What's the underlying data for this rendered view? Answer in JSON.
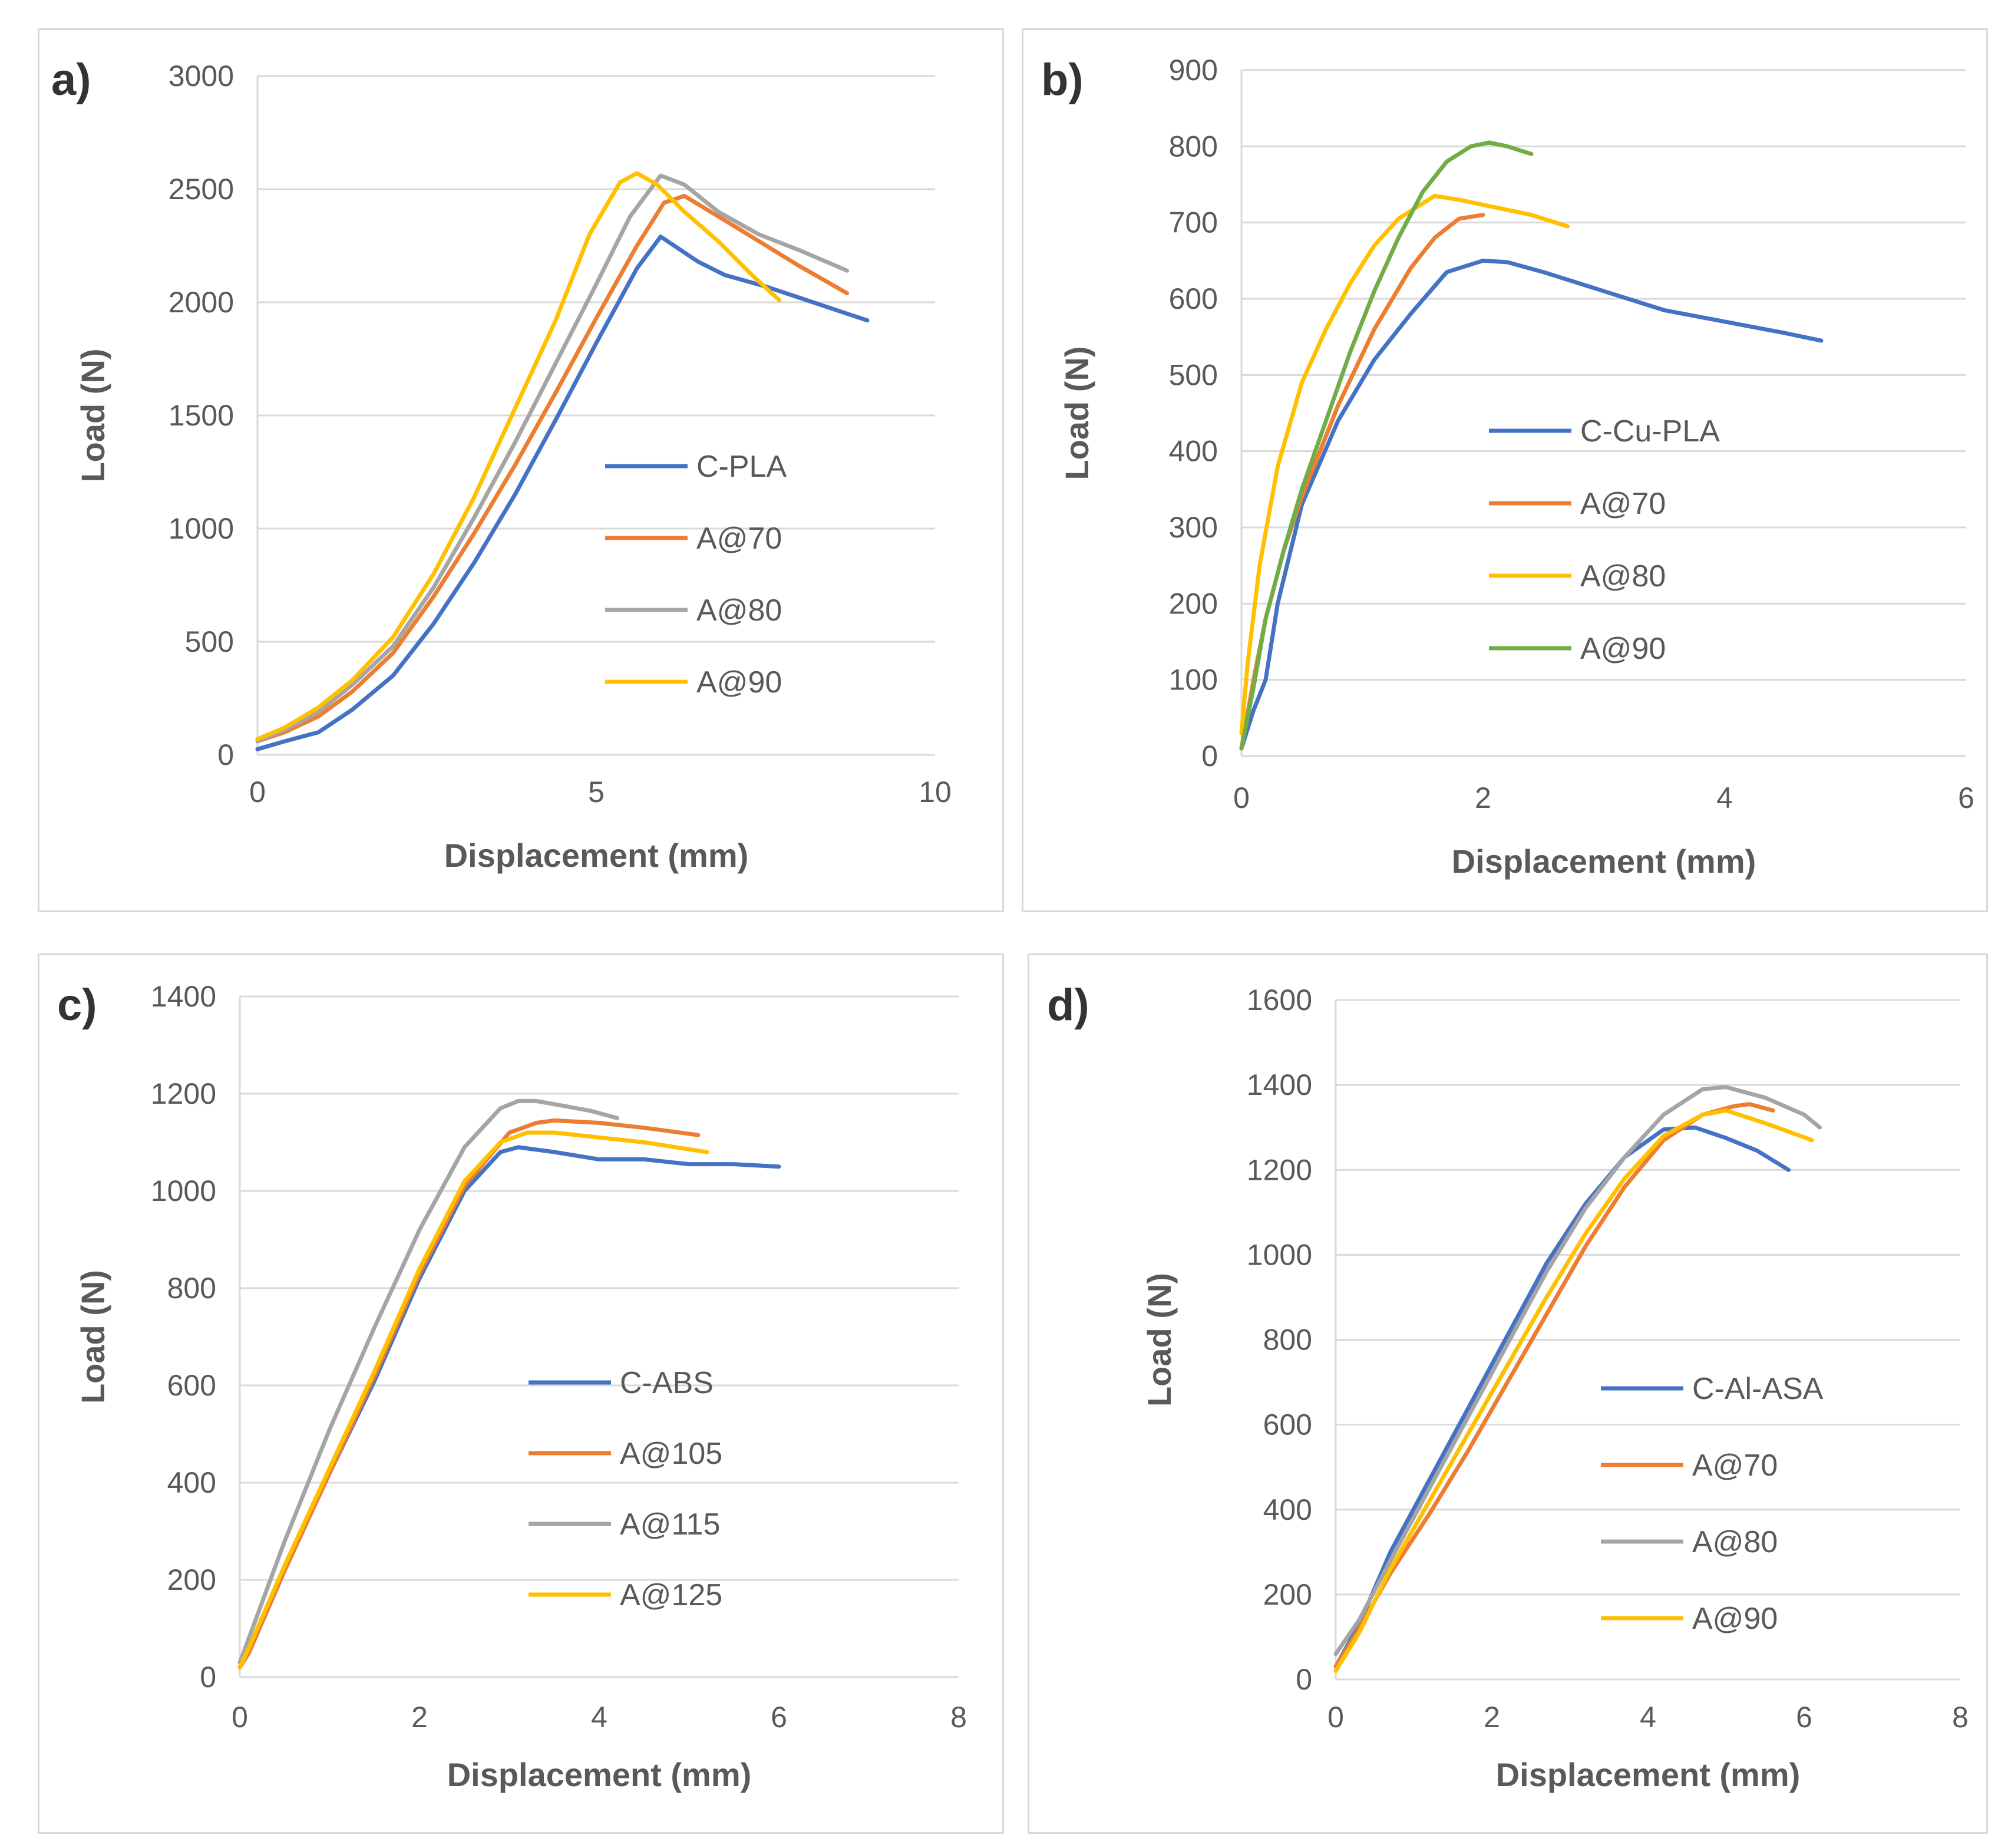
{
  "chart_data": [
    {
      "id": "a",
      "type": "line",
      "panel_label": "a)",
      "xlabel": "Displacement (mm)",
      "ylabel": "Load (N)",
      "xlim": [
        0,
        10
      ],
      "ylim": [
        0,
        3000
      ],
      "xticks": [
        0,
        5,
        10
      ],
      "yticks": [
        0,
        500,
        1000,
        1500,
        2000,
        2500,
        3000
      ],
      "legend_position": "center-right",
      "series": [
        {
          "name": "C-PLA",
          "color": "#4472C4",
          "x": [
            0,
            0.4,
            0.9,
            1.4,
            2.0,
            2.6,
            3.2,
            3.8,
            4.4,
            5.0,
            5.6,
            5.95,
            6.2,
            6.5,
            6.9,
            7.5,
            8.2,
            8.6,
            9.0
          ],
          "y": [
            25,
            60,
            100,
            200,
            350,
            580,
            850,
            1150,
            1480,
            1820,
            2150,
            2290,
            2240,
            2180,
            2120,
            2070,
            2000,
            1960,
            1920
          ]
        },
        {
          "name": "A@70",
          "color": "#ED7D31",
          "x": [
            0,
            0.4,
            0.9,
            1.4,
            2.0,
            2.6,
            3.2,
            3.8,
            4.4,
            5.0,
            5.6,
            6.0,
            6.3,
            6.8,
            7.4,
            8.0,
            8.7
          ],
          "y": [
            60,
            100,
            170,
            280,
            450,
            700,
            980,
            1280,
            1600,
            1930,
            2250,
            2440,
            2470,
            2380,
            2270,
            2160,
            2040
          ]
        },
        {
          "name": "A@80",
          "color": "#A5A5A5",
          "x": [
            0,
            0.4,
            0.9,
            1.4,
            2.0,
            2.6,
            3.2,
            3.8,
            4.4,
            5.0,
            5.5,
            5.95,
            6.3,
            6.8,
            7.4,
            8.0,
            8.7
          ],
          "y": [
            60,
            110,
            190,
            310,
            480,
            740,
            1050,
            1380,
            1730,
            2080,
            2380,
            2560,
            2520,
            2400,
            2300,
            2230,
            2140
          ]
        },
        {
          "name": "A@90",
          "color": "#FFC000",
          "x": [
            0,
            0.4,
            0.9,
            1.4,
            2.0,
            2.6,
            3.2,
            3.8,
            4.4,
            4.9,
            5.35,
            5.6,
            5.9,
            6.3,
            6.8,
            7.3,
            7.7
          ],
          "y": [
            70,
            120,
            210,
            330,
            520,
            800,
            1140,
            1530,
            1920,
            2300,
            2530,
            2570,
            2520,
            2400,
            2270,
            2120,
            2010
          ]
        }
      ]
    },
    {
      "id": "b",
      "type": "line",
      "panel_label": "b)",
      "xlabel": "Displacement (mm)",
      "ylabel": "Load (N)",
      "xlim": [
        0,
        6
      ],
      "ylim": [
        0,
        900
      ],
      "xticks": [
        0,
        2,
        4,
        6
      ],
      "yticks": [
        0,
        100,
        200,
        300,
        400,
        500,
        600,
        700,
        800,
        900
      ],
      "legend_position": "center-right",
      "series": [
        {
          "name": "C-Cu-PLA",
          "color": "#4472C4",
          "x": [
            0,
            0.1,
            0.2,
            0.3,
            0.5,
            0.8,
            1.1,
            1.4,
            1.7,
            2.0,
            2.2,
            2.5,
            3.0,
            3.5,
            4.0,
            4.5,
            4.8
          ],
          "y": [
            10,
            60,
            100,
            200,
            330,
            440,
            520,
            580,
            635,
            650,
            648,
            635,
            610,
            585,
            570,
            555,
            545
          ]
        },
        {
          "name": "A@70",
          "color": "#ED7D31",
          "x": [
            0,
            0.1,
            0.2,
            0.35,
            0.5,
            0.8,
            1.1,
            1.4,
            1.6,
            1.8,
            2.0
          ],
          "y": [
            10,
            100,
            180,
            270,
            340,
            460,
            560,
            640,
            680,
            705,
            710
          ]
        },
        {
          "name": "A@80",
          "color": "#FFC000",
          "x": [
            0,
            0.05,
            0.15,
            0.3,
            0.5,
            0.7,
            0.9,
            1.1,
            1.3,
            1.5,
            1.6,
            1.8,
            2.1,
            2.4,
            2.7
          ],
          "y": [
            30,
            120,
            250,
            380,
            490,
            560,
            620,
            670,
            705,
            725,
            735,
            730,
            720,
            710,
            695
          ]
        },
        {
          "name": "A@90",
          "color": "#70AD47",
          "x": [
            0,
            0.1,
            0.2,
            0.35,
            0.5,
            0.7,
            0.9,
            1.1,
            1.3,
            1.5,
            1.7,
            1.9,
            2.05,
            2.2,
            2.4
          ],
          "y": [
            10,
            90,
            180,
            270,
            350,
            440,
            530,
            610,
            680,
            740,
            780,
            800,
            805,
            800,
            790
          ]
        }
      ]
    },
    {
      "id": "c",
      "type": "line",
      "panel_label": "c)",
      "xlabel": "Displacement (mm)",
      "ylabel": "Load (N)",
      "xlim": [
        0,
        8
      ],
      "ylim": [
        0,
        1400
      ],
      "xticks": [
        0,
        2,
        4,
        6,
        8
      ],
      "yticks": [
        0,
        200,
        400,
        600,
        800,
        1000,
        1200,
        1400
      ],
      "legend_position": "center-right",
      "series": [
        {
          "name": "C-ABS",
          "color": "#4472C4",
          "x": [
            0,
            0.1,
            0.5,
            1.0,
            1.5,
            2.0,
            2.5,
            2.9,
            3.1,
            3.5,
            4.0,
            4.5,
            5.0,
            5.5,
            6.0
          ],
          "y": [
            20,
            50,
            220,
            420,
            610,
            820,
            1000,
            1080,
            1090,
            1080,
            1065,
            1065,
            1055,
            1055,
            1050
          ]
        },
        {
          "name": "A@105",
          "color": "#ED7D31",
          "x": [
            0,
            0.1,
            0.5,
            1.0,
            1.5,
            2.0,
            2.5,
            3.0,
            3.3,
            3.5,
            4.0,
            4.5,
            5.1
          ],
          "y": [
            20,
            50,
            220,
            420,
            620,
            830,
            1010,
            1120,
            1140,
            1145,
            1140,
            1130,
            1115
          ]
        },
        {
          "name": "A@115",
          "color": "#A5A5A5",
          "x": [
            0,
            0.1,
            0.5,
            1.0,
            1.5,
            2.0,
            2.5,
            2.9,
            3.1,
            3.3,
            3.6,
            3.9,
            4.2
          ],
          "y": [
            30,
            80,
            280,
            510,
            720,
            920,
            1090,
            1170,
            1185,
            1185,
            1175,
            1165,
            1150
          ]
        },
        {
          "name": "A@125",
          "color": "#FFC000",
          "x": [
            0,
            0.1,
            0.5,
            1.0,
            1.5,
            2.0,
            2.5,
            2.9,
            3.2,
            3.5,
            4.0,
            4.5,
            5.2
          ],
          "y": [
            20,
            60,
            230,
            430,
            630,
            840,
            1020,
            1100,
            1120,
            1120,
            1110,
            1100,
            1080
          ]
        }
      ]
    },
    {
      "id": "d",
      "type": "line",
      "panel_label": "d)",
      "xlabel": "Displacement (mm)",
      "ylabel": "Load (N)",
      "xlim": [
        0,
        8
      ],
      "ylim": [
        0,
        1600
      ],
      "xticks": [
        0,
        2,
        4,
        6,
        8
      ],
      "yticks": [
        0,
        200,
        400,
        600,
        800,
        1000,
        1200,
        1400,
        1600
      ],
      "legend_position": "center-right",
      "series": [
        {
          "name": "C-Al-ASA",
          "color": "#4472C4",
          "x": [
            0,
            0.3,
            0.7,
            1.2,
            1.7,
            2.2,
            2.7,
            3.2,
            3.7,
            4.2,
            4.6,
            5.0,
            5.4,
            5.8
          ],
          "y": [
            30,
            130,
            300,
            470,
            640,
            810,
            980,
            1120,
            1230,
            1295,
            1300,
            1275,
            1245,
            1200
          ]
        },
        {
          "name": "A@70",
          "color": "#ED7D31",
          "x": [
            0,
            0.3,
            0.7,
            1.2,
            1.7,
            2.2,
            2.7,
            3.2,
            3.7,
            4.2,
            4.7,
            5.1,
            5.3,
            5.6
          ],
          "y": [
            30,
            120,
            250,
            390,
            540,
            700,
            860,
            1020,
            1160,
            1270,
            1330,
            1350,
            1355,
            1340
          ]
        },
        {
          "name": "A@80",
          "color": "#A5A5A5",
          "x": [
            0,
            0.3,
            0.7,
            1.2,
            1.7,
            2.2,
            2.7,
            3.2,
            3.7,
            4.2,
            4.7,
            5.0,
            5.5,
            6.0,
            6.2
          ],
          "y": [
            60,
            140,
            280,
            450,
            620,
            790,
            960,
            1110,
            1230,
            1330,
            1390,
            1395,
            1370,
            1330,
            1300
          ]
        },
        {
          "name": "A@90",
          "color": "#FFC000",
          "x": [
            0,
            0.3,
            0.7,
            1.2,
            1.7,
            2.2,
            2.7,
            3.2,
            3.7,
            4.2,
            4.7,
            5.0,
            5.5,
            6.1
          ],
          "y": [
            20,
            110,
            260,
            420,
            580,
            740,
            900,
            1050,
            1180,
            1280,
            1330,
            1340,
            1310,
            1270
          ]
        }
      ]
    }
  ]
}
